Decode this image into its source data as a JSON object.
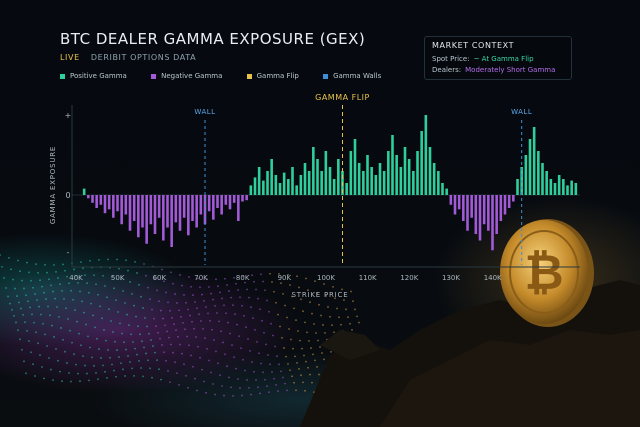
{
  "header": {
    "title": "BTC DEALER GAMMA EXPOSURE (GEX)",
    "live_label": "LIVE",
    "source_label": "DERIBIT OPTIONS DATA"
  },
  "legend": [
    {
      "label": "Positive Gamma",
      "color": "#2fcf9b"
    },
    {
      "label": "Negative Gamma",
      "color": "#a35ad6"
    },
    {
      "label": "Gamma Flip",
      "color": "#e7c24a"
    },
    {
      "label": "Gamma Walls",
      "color": "#3d8fd6"
    }
  ],
  "market_context": {
    "title": "MARKET CONTEXT",
    "spot_label": "Spot Price:",
    "spot_value": "~ At Gamma Flip",
    "dealers_label": "Dealers:",
    "dealers_value": "Moderately Short Gamma"
  },
  "colors": {
    "positive": "#2fcf9b",
    "negative": "#a35ad6",
    "flip": "#e7c24a",
    "wall": "#3d8fd6"
  },
  "chart_data": {
    "type": "bar",
    "xlabel": "STRIKE PRICE",
    "ylabel": "GAMMA EXPOSURE",
    "y_ticks": [
      "+",
      "0",
      "-"
    ],
    "x_tick_labels": [
      "40K",
      "50K",
      "60K",
      "70K",
      "80K",
      "90K",
      "100K",
      "110K",
      "120K",
      "130K",
      "140K"
    ],
    "x_ticks": [
      40,
      50,
      60,
      70,
      80,
      90,
      100,
      110,
      120,
      130,
      140
    ],
    "xlim": [
      40,
      160
    ],
    "ylim": [
      -1,
      1
    ],
    "x_unit": "K USD strike",
    "gamma_flip": {
      "label": "GAMMA FLIP",
      "x": 103
    },
    "gamma_walls": [
      {
        "label": "WALL",
        "x": 70
      },
      {
        "label": "WALL",
        "x": 146
      }
    ],
    "x": [
      41,
      42,
      43,
      44,
      45,
      46,
      47,
      48,
      49,
      50,
      51,
      52,
      53,
      54,
      55,
      56,
      57,
      58,
      59,
      60,
      61,
      62,
      63,
      64,
      65,
      66,
      67,
      68,
      69,
      70,
      71,
      72,
      73,
      74,
      75,
      76,
      77,
      78,
      79,
      80,
      81,
      82,
      83,
      84,
      85,
      86,
      87,
      88,
      89,
      90,
      91,
      92,
      93,
      94,
      95,
      96,
      97,
      98,
      99,
      100,
      101,
      102,
      103,
      104,
      105,
      106,
      107,
      108,
      109,
      110,
      111,
      112,
      113,
      114,
      115,
      116,
      117,
      118,
      119,
      120,
      121,
      122,
      123,
      124,
      125,
      126,
      127,
      128,
      129,
      130,
      131,
      132,
      133,
      134,
      135,
      136,
      137,
      138,
      139,
      140,
      141,
      142,
      143,
      144,
      145,
      146,
      147,
      148,
      149,
      150,
      151,
      152,
      153,
      154,
      155,
      156,
      157,
      158,
      159
    ],
    "values": [
      0.08,
      -0.05,
      -0.12,
      -0.2,
      -0.15,
      -0.28,
      -0.22,
      -0.35,
      -0.25,
      -0.45,
      -0.3,
      -0.55,
      -0.4,
      -0.65,
      -0.5,
      -0.75,
      -0.45,
      -0.6,
      -0.35,
      -0.7,
      -0.5,
      -0.8,
      -0.42,
      -0.55,
      -0.35,
      -0.62,
      -0.4,
      -0.5,
      -0.3,
      -0.45,
      -0.25,
      -0.38,
      -0.2,
      -0.3,
      -0.15,
      -0.22,
      -0.12,
      -0.4,
      -0.1,
      -0.08,
      0.12,
      0.22,
      0.35,
      0.18,
      0.3,
      0.45,
      0.25,
      0.15,
      0.28,
      0.2,
      0.35,
      0.12,
      0.25,
      0.4,
      0.3,
      0.6,
      0.45,
      0.3,
      0.55,
      0.35,
      0.2,
      0.45,
      0.3,
      0.15,
      0.55,
      0.7,
      0.4,
      0.3,
      0.5,
      0.35,
      0.25,
      0.4,
      0.3,
      0.55,
      0.75,
      0.5,
      0.35,
      0.6,
      0.45,
      0.3,
      0.55,
      0.8,
      1.0,
      0.6,
      0.4,
      0.3,
      0.15,
      0.08,
      -0.15,
      -0.3,
      -0.22,
      -0.4,
      -0.55,
      -0.35,
      -0.6,
      -0.7,
      -0.45,
      -0.55,
      -0.85,
      -0.6,
      -0.4,
      -0.3,
      -0.2,
      -0.1,
      0.2,
      0.35,
      0.5,
      0.7,
      0.85,
      0.55,
      0.4,
      0.3,
      0.2,
      0.15,
      0.25,
      0.2,
      0.12,
      0.18,
      0.15
    ]
  }
}
